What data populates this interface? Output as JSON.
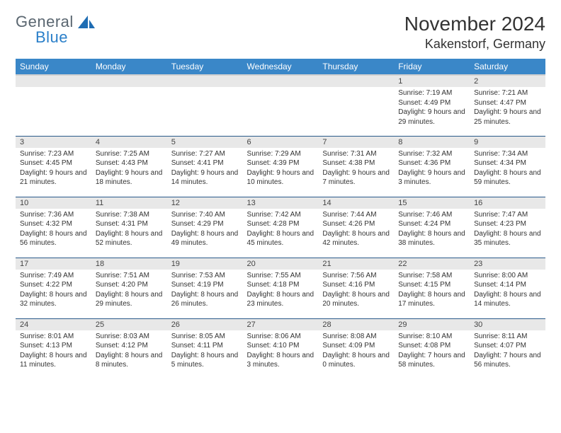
{
  "logo": {
    "text1": "General",
    "text2": "Blue"
  },
  "title": "November 2024",
  "location": "Kakenstorf, Germany",
  "colors": {
    "header_bg": "#3a87c8",
    "header_fg": "#ffffff",
    "daynum_bg": "#e8e8e8",
    "row_border": "#2a5a8a",
    "logo_gray": "#5a6670",
    "logo_blue": "#2a7fc9"
  },
  "weekdays": [
    "Sunday",
    "Monday",
    "Tuesday",
    "Wednesday",
    "Thursday",
    "Friday",
    "Saturday"
  ],
  "weeks": [
    [
      {
        "empty": true
      },
      {
        "empty": true
      },
      {
        "empty": true
      },
      {
        "empty": true
      },
      {
        "empty": true
      },
      {
        "day": "1",
        "sunrise": "Sunrise: 7:19 AM",
        "sunset": "Sunset: 4:49 PM",
        "daylight": "Daylight: 9 hours and 29 minutes."
      },
      {
        "day": "2",
        "sunrise": "Sunrise: 7:21 AM",
        "sunset": "Sunset: 4:47 PM",
        "daylight": "Daylight: 9 hours and 25 minutes."
      }
    ],
    [
      {
        "day": "3",
        "sunrise": "Sunrise: 7:23 AM",
        "sunset": "Sunset: 4:45 PM",
        "daylight": "Daylight: 9 hours and 21 minutes."
      },
      {
        "day": "4",
        "sunrise": "Sunrise: 7:25 AM",
        "sunset": "Sunset: 4:43 PM",
        "daylight": "Daylight: 9 hours and 18 minutes."
      },
      {
        "day": "5",
        "sunrise": "Sunrise: 7:27 AM",
        "sunset": "Sunset: 4:41 PM",
        "daylight": "Daylight: 9 hours and 14 minutes."
      },
      {
        "day": "6",
        "sunrise": "Sunrise: 7:29 AM",
        "sunset": "Sunset: 4:39 PM",
        "daylight": "Daylight: 9 hours and 10 minutes."
      },
      {
        "day": "7",
        "sunrise": "Sunrise: 7:31 AM",
        "sunset": "Sunset: 4:38 PM",
        "daylight": "Daylight: 9 hours and 7 minutes."
      },
      {
        "day": "8",
        "sunrise": "Sunrise: 7:32 AM",
        "sunset": "Sunset: 4:36 PM",
        "daylight": "Daylight: 9 hours and 3 minutes."
      },
      {
        "day": "9",
        "sunrise": "Sunrise: 7:34 AM",
        "sunset": "Sunset: 4:34 PM",
        "daylight": "Daylight: 8 hours and 59 minutes."
      }
    ],
    [
      {
        "day": "10",
        "sunrise": "Sunrise: 7:36 AM",
        "sunset": "Sunset: 4:32 PM",
        "daylight": "Daylight: 8 hours and 56 minutes."
      },
      {
        "day": "11",
        "sunrise": "Sunrise: 7:38 AM",
        "sunset": "Sunset: 4:31 PM",
        "daylight": "Daylight: 8 hours and 52 minutes."
      },
      {
        "day": "12",
        "sunrise": "Sunrise: 7:40 AM",
        "sunset": "Sunset: 4:29 PM",
        "daylight": "Daylight: 8 hours and 49 minutes."
      },
      {
        "day": "13",
        "sunrise": "Sunrise: 7:42 AM",
        "sunset": "Sunset: 4:28 PM",
        "daylight": "Daylight: 8 hours and 45 minutes."
      },
      {
        "day": "14",
        "sunrise": "Sunrise: 7:44 AM",
        "sunset": "Sunset: 4:26 PM",
        "daylight": "Daylight: 8 hours and 42 minutes."
      },
      {
        "day": "15",
        "sunrise": "Sunrise: 7:46 AM",
        "sunset": "Sunset: 4:24 PM",
        "daylight": "Daylight: 8 hours and 38 minutes."
      },
      {
        "day": "16",
        "sunrise": "Sunrise: 7:47 AM",
        "sunset": "Sunset: 4:23 PM",
        "daylight": "Daylight: 8 hours and 35 minutes."
      }
    ],
    [
      {
        "day": "17",
        "sunrise": "Sunrise: 7:49 AM",
        "sunset": "Sunset: 4:22 PM",
        "daylight": "Daylight: 8 hours and 32 minutes."
      },
      {
        "day": "18",
        "sunrise": "Sunrise: 7:51 AM",
        "sunset": "Sunset: 4:20 PM",
        "daylight": "Daylight: 8 hours and 29 minutes."
      },
      {
        "day": "19",
        "sunrise": "Sunrise: 7:53 AM",
        "sunset": "Sunset: 4:19 PM",
        "daylight": "Daylight: 8 hours and 26 minutes."
      },
      {
        "day": "20",
        "sunrise": "Sunrise: 7:55 AM",
        "sunset": "Sunset: 4:18 PM",
        "daylight": "Daylight: 8 hours and 23 minutes."
      },
      {
        "day": "21",
        "sunrise": "Sunrise: 7:56 AM",
        "sunset": "Sunset: 4:16 PM",
        "daylight": "Daylight: 8 hours and 20 minutes."
      },
      {
        "day": "22",
        "sunrise": "Sunrise: 7:58 AM",
        "sunset": "Sunset: 4:15 PM",
        "daylight": "Daylight: 8 hours and 17 minutes."
      },
      {
        "day": "23",
        "sunrise": "Sunrise: 8:00 AM",
        "sunset": "Sunset: 4:14 PM",
        "daylight": "Daylight: 8 hours and 14 minutes."
      }
    ],
    [
      {
        "day": "24",
        "sunrise": "Sunrise: 8:01 AM",
        "sunset": "Sunset: 4:13 PM",
        "daylight": "Daylight: 8 hours and 11 minutes."
      },
      {
        "day": "25",
        "sunrise": "Sunrise: 8:03 AM",
        "sunset": "Sunset: 4:12 PM",
        "daylight": "Daylight: 8 hours and 8 minutes."
      },
      {
        "day": "26",
        "sunrise": "Sunrise: 8:05 AM",
        "sunset": "Sunset: 4:11 PM",
        "daylight": "Daylight: 8 hours and 5 minutes."
      },
      {
        "day": "27",
        "sunrise": "Sunrise: 8:06 AM",
        "sunset": "Sunset: 4:10 PM",
        "daylight": "Daylight: 8 hours and 3 minutes."
      },
      {
        "day": "28",
        "sunrise": "Sunrise: 8:08 AM",
        "sunset": "Sunset: 4:09 PM",
        "daylight": "Daylight: 8 hours and 0 minutes."
      },
      {
        "day": "29",
        "sunrise": "Sunrise: 8:10 AM",
        "sunset": "Sunset: 4:08 PM",
        "daylight": "Daylight: 7 hours and 58 minutes."
      },
      {
        "day": "30",
        "sunrise": "Sunrise: 8:11 AM",
        "sunset": "Sunset: 4:07 PM",
        "daylight": "Daylight: 7 hours and 56 minutes."
      }
    ]
  ]
}
